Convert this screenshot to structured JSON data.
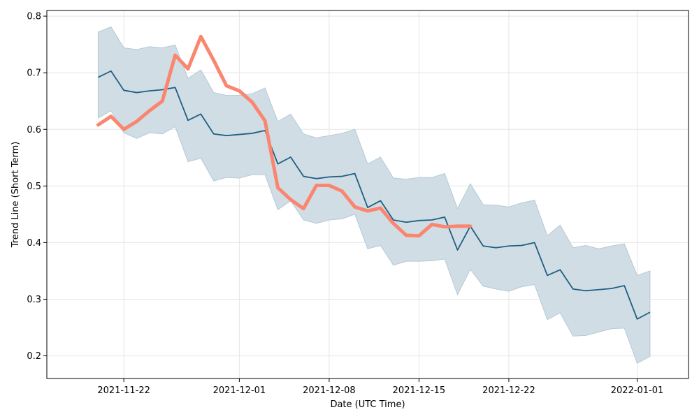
{
  "chart_data": {
    "type": "line",
    "xlabel": "Date (UTC Time)",
    "ylabel": "Trend Line (Short Term)",
    "grid": true,
    "x_range": [
      "2021-11-16",
      "2022-01-05"
    ],
    "ylim": [
      0.16,
      0.81
    ],
    "x_ticks": [
      "2021-11-22",
      "2021-12-01",
      "2021-12-08",
      "2021-12-15",
      "2021-12-22",
      "2022-01-01"
    ],
    "y_ticks": [
      "0.2",
      "0.3",
      "0.4",
      "0.5",
      "0.6",
      "0.7",
      "0.8"
    ],
    "colors": {
      "band": "#d0dde5",
      "band_edge": "#b5c9d6",
      "trend": "#1f5f82",
      "price": "#fa8670",
      "grid": "#e5e5e5"
    },
    "dates": [
      "2021-11-20",
      "2021-11-21",
      "2021-11-22",
      "2021-11-23",
      "2021-11-24",
      "2021-11-25",
      "2021-11-26",
      "2021-11-27",
      "2021-11-28",
      "2021-11-29",
      "2021-11-30",
      "2021-12-01",
      "2021-12-02",
      "2021-12-03",
      "2021-12-04",
      "2021-12-05",
      "2021-12-06",
      "2021-12-07",
      "2021-12-08",
      "2021-12-09",
      "2021-12-10",
      "2021-12-11",
      "2021-12-12",
      "2021-12-13",
      "2021-12-14",
      "2021-12-15",
      "2021-12-16",
      "2021-12-17",
      "2021-12-18",
      "2021-12-19",
      "2021-12-20",
      "2021-12-21",
      "2021-12-22",
      "2021-12-23",
      "2021-12-24",
      "2021-12-25",
      "2021-12-26",
      "2021-12-27",
      "2021-12-28",
      "2021-12-29",
      "2021-12-30",
      "2021-12-31",
      "2022-01-01",
      "2022-01-02"
    ],
    "series": [
      {
        "kind": "band",
        "upper": [
          0.772,
          0.781,
          0.744,
          0.741,
          0.746,
          0.744,
          0.749,
          0.69,
          0.705,
          0.665,
          0.66,
          0.66,
          0.663,
          0.673,
          0.614,
          0.627,
          0.592,
          0.585,
          0.589,
          0.593,
          0.6,
          0.539,
          0.551,
          0.514,
          0.512,
          0.515,
          0.515,
          0.522,
          0.46,
          0.504,
          0.467,
          0.466,
          0.463,
          0.47,
          0.475,
          0.412,
          0.431,
          0.391,
          0.395,
          0.389,
          0.394,
          0.398,
          0.342,
          0.35
        ],
        "lower": [
          0.62,
          0.633,
          0.594,
          0.584,
          0.594,
          0.592,
          0.605,
          0.543,
          0.549,
          0.509,
          0.515,
          0.514,
          0.52,
          0.52,
          0.458,
          0.474,
          0.44,
          0.434,
          0.44,
          0.442,
          0.45,
          0.389,
          0.395,
          0.36,
          0.367,
          0.367,
          0.368,
          0.371,
          0.308,
          0.353,
          0.323,
          0.318,
          0.314,
          0.322,
          0.326,
          0.264,
          0.276,
          0.235,
          0.236,
          0.242,
          0.248,
          0.249,
          0.187,
          0.199
        ]
      },
      {
        "kind": "trend",
        "values": [
          0.692,
          0.703,
          0.669,
          0.665,
          0.668,
          0.67,
          0.674,
          0.616,
          0.627,
          0.592,
          0.589,
          0.591,
          0.593,
          0.598,
          0.539,
          0.551,
          0.517,
          0.513,
          0.516,
          0.517,
          0.522,
          0.462,
          0.474,
          0.44,
          0.436,
          0.439,
          0.44,
          0.445,
          0.387,
          0.429,
          0.394,
          0.391,
          0.394,
          0.395,
          0.4,
          0.342,
          0.352,
          0.318,
          0.315,
          0.317,
          0.319,
          0.324,
          0.265,
          0.277
        ]
      },
      {
        "kind": "price",
        "values": [
          0.608,
          0.623,
          0.6,
          0.614,
          0.633,
          0.65,
          0.731,
          0.707,
          0.764,
          0.722,
          0.677,
          0.668,
          0.648,
          0.615,
          0.497,
          0.476,
          0.46,
          0.501,
          0.501,
          0.491,
          0.463,
          0.456,
          0.461,
          0.434,
          0.413,
          0.412,
          0.432,
          0.428,
          0.429,
          0.429,
          null,
          null,
          null,
          null,
          null,
          null,
          null,
          null,
          null,
          null,
          null,
          null,
          null,
          null
        ]
      }
    ]
  }
}
